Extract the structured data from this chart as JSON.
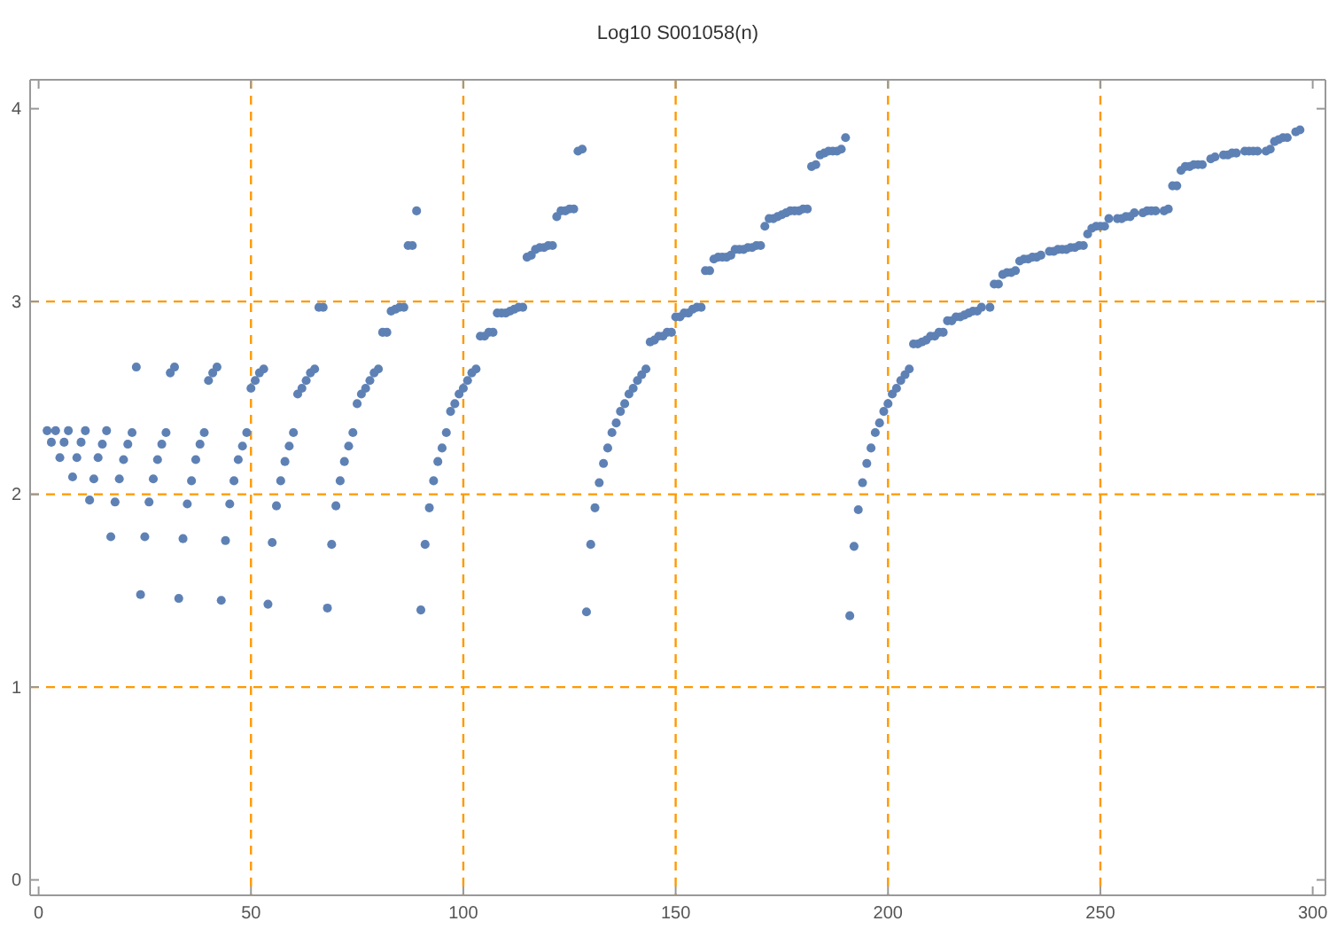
{
  "chart_data": {
    "type": "scatter",
    "title": "Log10 S001058(n)",
    "x": [
      2,
      3,
      4,
      5,
      6,
      7,
      8,
      9,
      10,
      11,
      12,
      13,
      14,
      15,
      16,
      17,
      18,
      19,
      20,
      21,
      22,
      23,
      24,
      25,
      26,
      27,
      28,
      29,
      30,
      31,
      32,
      33,
      34,
      35,
      36,
      37,
      38,
      39,
      40,
      41,
      42,
      43,
      44,
      45,
      46,
      47,
      48,
      49,
      50,
      51,
      52,
      53,
      54,
      55,
      56,
      57,
      58,
      59,
      60,
      61,
      62,
      63,
      64,
      65,
      66,
      67,
      68,
      69,
      70,
      71,
      72,
      73,
      74,
      75,
      76,
      77,
      78,
      79,
      80,
      81,
      82,
      83,
      84,
      85,
      86,
      87,
      88,
      89,
      90,
      91,
      92,
      93,
      94,
      95,
      96,
      97,
      98,
      99,
      100,
      101,
      102,
      103,
      104,
      105,
      106,
      107,
      108,
      109,
      110,
      111,
      112,
      113,
      114,
      115,
      116,
      117,
      118,
      119,
      120,
      121,
      122,
      123,
      124,
      125,
      126,
      127,
      128,
      129,
      130,
      131,
      132,
      133,
      134,
      135,
      136,
      137,
      138,
      139,
      140,
      141,
      142,
      143,
      144,
      145,
      146,
      147,
      148,
      149,
      150,
      151,
      152,
      153,
      154,
      155,
      156,
      157,
      158,
      159,
      160,
      161,
      162,
      163,
      164,
      165,
      166,
      167,
      168,
      169,
      170,
      171,
      172,
      173,
      174,
      175,
      176,
      177,
      178,
      179,
      180,
      181,
      182,
      183,
      184,
      185,
      186,
      187,
      188,
      189,
      190,
      191,
      192,
      193,
      194,
      195,
      196,
      197,
      198,
      199,
      200,
      201,
      202,
      203,
      204,
      205,
      206,
      207,
      208,
      209,
      210,
      211,
      212,
      213,
      214,
      215,
      216,
      217,
      218,
      219,
      220,
      221,
      222,
      224,
      225,
      226,
      227,
      228,
      229,
      230,
      231,
      232,
      233,
      234,
      235,
      236,
      238,
      239,
      240,
      241,
      242,
      243,
      244,
      245,
      246,
      247,
      248,
      249,
      250,
      251,
      252,
      254,
      255,
      256,
      257,
      258,
      260,
      261,
      262,
      263,
      265,
      266,
      267,
      268,
      269,
      270,
      271,
      272,
      273,
      274,
      276,
      277,
      279,
      280,
      281,
      282,
      284,
      285,
      286,
      287,
      289,
      290,
      291,
      292,
      293,
      294,
      296,
      297
    ],
    "values": [
      2.33,
      2.27,
      2.33,
      2.19,
      2.27,
      2.33,
      2.09,
      2.19,
      2.27,
      2.33,
      1.97,
      2.08,
      2.19,
      2.26,
      2.33,
      1.78,
      1.96,
      2.08,
      2.18,
      2.26,
      2.32,
      2.66,
      1.48,
      1.78,
      1.96,
      2.08,
      2.18,
      2.26,
      2.32,
      2.63,
      2.66,
      1.46,
      1.77,
      1.95,
      2.07,
      2.18,
      2.26,
      2.32,
      2.59,
      2.63,
      2.66,
      1.45,
      1.76,
      1.95,
      2.07,
      2.18,
      2.25,
      2.32,
      2.55,
      2.59,
      2.63,
      2.65,
      1.43,
      1.75,
      1.94,
      2.07,
      2.17,
      2.25,
      2.32,
      2.52,
      2.55,
      2.59,
      2.63,
      2.65,
      2.97,
      2.97,
      1.41,
      1.74,
      1.94,
      2.07,
      2.17,
      2.25,
      2.32,
      2.47,
      2.52,
      2.55,
      2.59,
      2.63,
      2.65,
      2.84,
      2.84,
      2.95,
      2.96,
      2.97,
      2.97,
      3.29,
      3.29,
      3.47,
      1.4,
      1.74,
      1.93,
      2.07,
      2.17,
      2.24,
      2.32,
      2.43,
      2.47,
      2.52,
      2.55,
      2.59,
      2.63,
      2.65,
      2.82,
      2.82,
      2.84,
      2.84,
      2.94,
      2.94,
      2.94,
      2.95,
      2.96,
      2.97,
      2.97,
      3.23,
      3.24,
      3.27,
      3.28,
      3.28,
      3.29,
      3.29,
      3.44,
      3.47,
      3.47,
      3.48,
      3.48,
      3.78,
      3.79,
      1.39,
      1.74,
      1.93,
      2.06,
      2.16,
      2.24,
      2.32,
      2.37,
      2.43,
      2.47,
      2.52,
      2.55,
      2.59,
      2.62,
      2.65,
      2.79,
      2.8,
      2.82,
      2.82,
      2.84,
      2.84,
      2.92,
      2.92,
      2.94,
      2.94,
      2.96,
      2.97,
      2.97,
      3.16,
      3.16,
      3.22,
      3.23,
      3.23,
      3.23,
      3.24,
      3.27,
      3.27,
      3.27,
      3.28,
      3.28,
      3.29,
      3.29,
      3.39,
      3.43,
      3.43,
      3.44,
      3.45,
      3.46,
      3.47,
      3.47,
      3.47,
      3.48,
      3.48,
      3.7,
      3.71,
      3.76,
      3.77,
      3.78,
      3.78,
      3.78,
      3.79,
      3.85,
      1.37,
      1.73,
      1.92,
      2.06,
      2.16,
      2.24,
      2.32,
      2.37,
      2.43,
      2.47,
      2.52,
      2.55,
      2.59,
      2.62,
      2.65,
      2.78,
      2.78,
      2.79,
      2.8,
      2.82,
      2.82,
      2.84,
      2.84,
      2.9,
      2.9,
      2.92,
      2.92,
      2.93,
      2.94,
      2.95,
      2.95,
      2.97,
      2.97,
      3.09,
      3.09,
      3.14,
      3.15,
      3.15,
      3.16,
      3.21,
      3.22,
      3.22,
      3.23,
      3.23,
      3.24,
      3.26,
      3.26,
      3.27,
      3.27,
      3.27,
      3.28,
      3.28,
      3.29,
      3.29,
      3.35,
      3.38,
      3.39,
      3.39,
      3.39,
      3.43,
      3.43,
      3.43,
      3.44,
      3.44,
      3.46,
      3.46,
      3.47,
      3.47,
      3.47,
      3.47,
      3.48,
      3.6,
      3.6,
      3.68,
      3.7,
      3.7,
      3.71,
      3.71,
      3.71,
      3.74,
      3.75,
      3.76,
      3.76,
      3.77,
      3.77,
      3.78,
      3.78,
      3.78,
      3.78,
      3.78,
      3.79,
      3.83,
      3.84,
      3.85,
      3.85,
      3.88,
      3.89
    ],
    "color": "#5e81b5",
    "marker": "circle",
    "xlim": [
      -2,
      303
    ],
    "ylim": [
      -0.08,
      4.15
    ],
    "xticks": [
      0,
      50,
      100,
      150,
      200,
      250,
      300
    ],
    "yticks": [
      0,
      1,
      2,
      3,
      4
    ],
    "grid": true
  }
}
